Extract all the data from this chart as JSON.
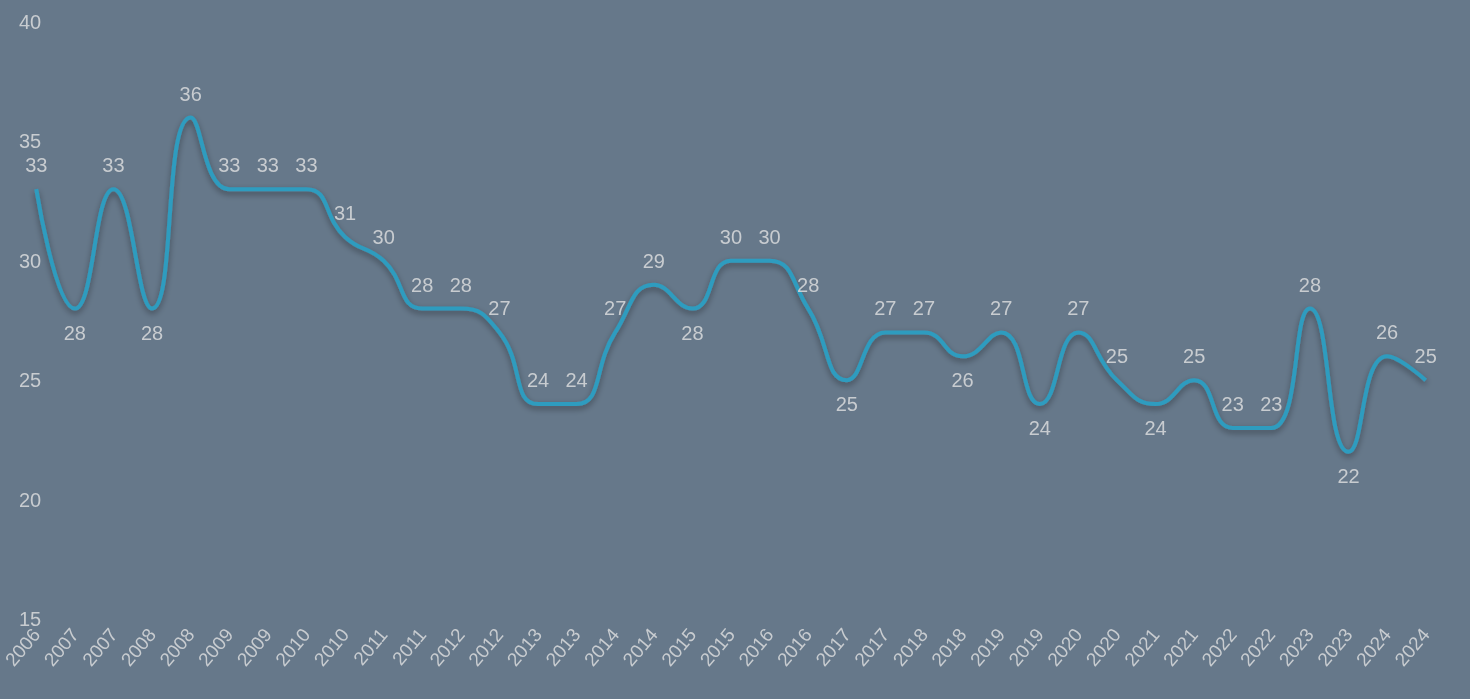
{
  "chart_data": {
    "type": "line",
    "categories": [
      "2006",
      "2007",
      "2007",
      "2008",
      "2008",
      "2009",
      "2009",
      "2010",
      "2010",
      "2011",
      "2011",
      "2012",
      "2012",
      "2013",
      "2013",
      "2014",
      "2014",
      "2015",
      "2015",
      "2016",
      "2016",
      "2017",
      "2017",
      "2018",
      "2018",
      "2019",
      "2019",
      "2020",
      "2020",
      "2021",
      "2021",
      "2022",
      "2022",
      "2023",
      "2023",
      "2024",
      "2024"
    ],
    "series": [
      {
        "color": "#2e9cbf",
        "values": [
          33,
          28,
          33,
          28,
          36,
          33,
          33,
          33,
          31,
          30,
          28,
          28,
          27,
          24,
          24,
          27,
          29,
          28,
          30,
          30,
          28,
          25,
          27,
          27,
          26,
          27,
          24,
          27,
          25,
          24,
          25,
          23,
          23,
          28,
          22,
          26,
          25
        ]
      }
    ],
    "ylim": [
      15,
      40
    ],
    "yticks": [
      15,
      20,
      25,
      30,
      35,
      40
    ],
    "grid": false,
    "marker": "none",
    "line_style": "solid",
    "data_labels": true
  }
}
